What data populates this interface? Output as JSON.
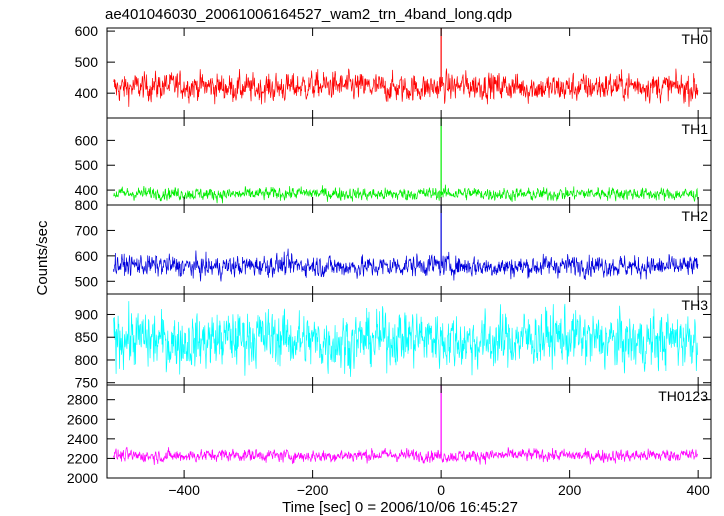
{
  "title": "ae401046030_20061006164527_wam2_trn_4band_long.qdp",
  "chart_data": {
    "type": "line",
    "title": "ae401046030_20061006164527_wam2_trn_4band_long.qdp",
    "xlabel": "Time [sec] 0 = 2006/10/06 16:45:27",
    "ylabel": "Counts/sec",
    "xlim": [
      -520,
      420
    ],
    "x_ticks": [
      -400,
      -200,
      0,
      200,
      400
    ],
    "x_tick_labels": [
      "−400",
      "−200",
      "0",
      "200",
      "400"
    ],
    "x_range": [
      -510,
      400
    ],
    "grid": false,
    "panels": [
      {
        "name": "TH0",
        "color": "#ff0000",
        "ylim": [
          320,
          610
        ],
        "y_ticks": [
          400,
          500,
          600
        ],
        "baseline": 420,
        "noise": 28,
        "peak_value": 610,
        "peak_x": 0
      },
      {
        "name": "TH1",
        "color": "#00ee00",
        "ylim": [
          340,
          690
        ],
        "y_ticks": [
          400,
          500,
          600
        ],
        "baseline": 385,
        "noise": 16,
        "peak_value": 690,
        "peak_x": 0
      },
      {
        "name": "TH2",
        "color": "#0000dd",
        "ylim": [
          450,
          800
        ],
        "y_ticks": [
          500,
          600,
          700,
          800
        ],
        "baseline": 560,
        "noise": 26,
        "peak_value": 800,
        "peak_x": 0
      },
      {
        "name": "TH3",
        "color": "#00ffff",
        "ylim": [
          745,
          945
        ],
        "y_ticks": [
          750,
          800,
          850,
          900
        ],
        "baseline": 845,
        "noise": 38,
        "peak_value": null,
        "peak_x": null
      },
      {
        "name": "TH0123",
        "color": "#ff00ff",
        "ylim": [
          2000,
          2950
        ],
        "y_ticks": [
          2000,
          2200,
          2400,
          2600,
          2800
        ],
        "baseline": 2230,
        "noise": 40,
        "peak_value": 2950,
        "peak_x": 0
      }
    ]
  }
}
